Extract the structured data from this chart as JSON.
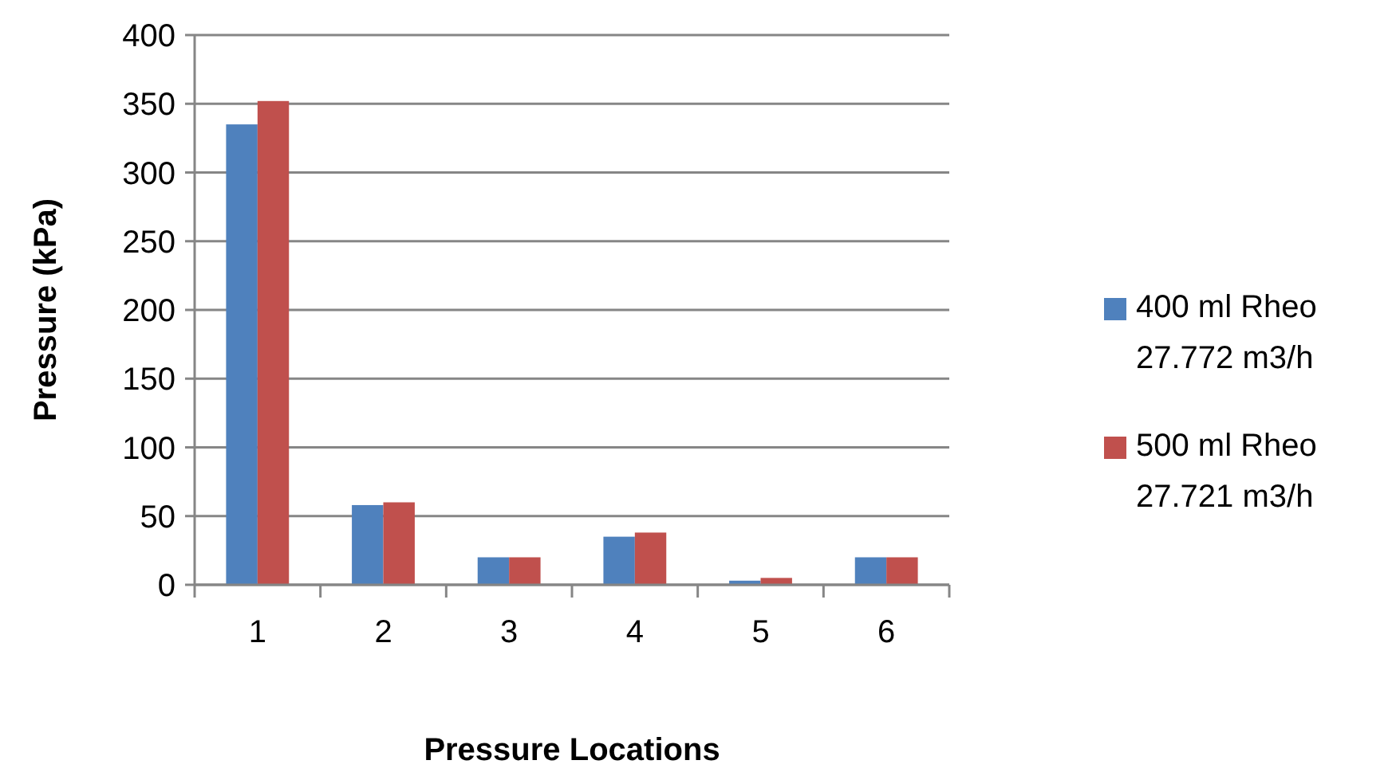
{
  "chart_data": {
    "type": "bar",
    "xlabel": "Pressure Locations",
    "ylabel": "Pressure (kPa)",
    "categories": [
      "1",
      "2",
      "3",
      "4",
      "5",
      "6"
    ],
    "series": [
      {
        "name": "400 ml Rheo 27.772 m3/h",
        "color": "#4f81bd",
        "values": [
          335,
          58,
          20,
          35,
          3,
          20
        ]
      },
      {
        "name": "500 ml Rheo 27.721 m3/h",
        "color": "#c0504d",
        "values": [
          352,
          60,
          20,
          38,
          5,
          20
        ]
      }
    ],
    "ylim": [
      0,
      400
    ],
    "yticks": [
      0,
      50,
      100,
      150,
      200,
      250,
      300,
      350,
      400
    ],
    "grid": "y",
    "legend": "right"
  }
}
